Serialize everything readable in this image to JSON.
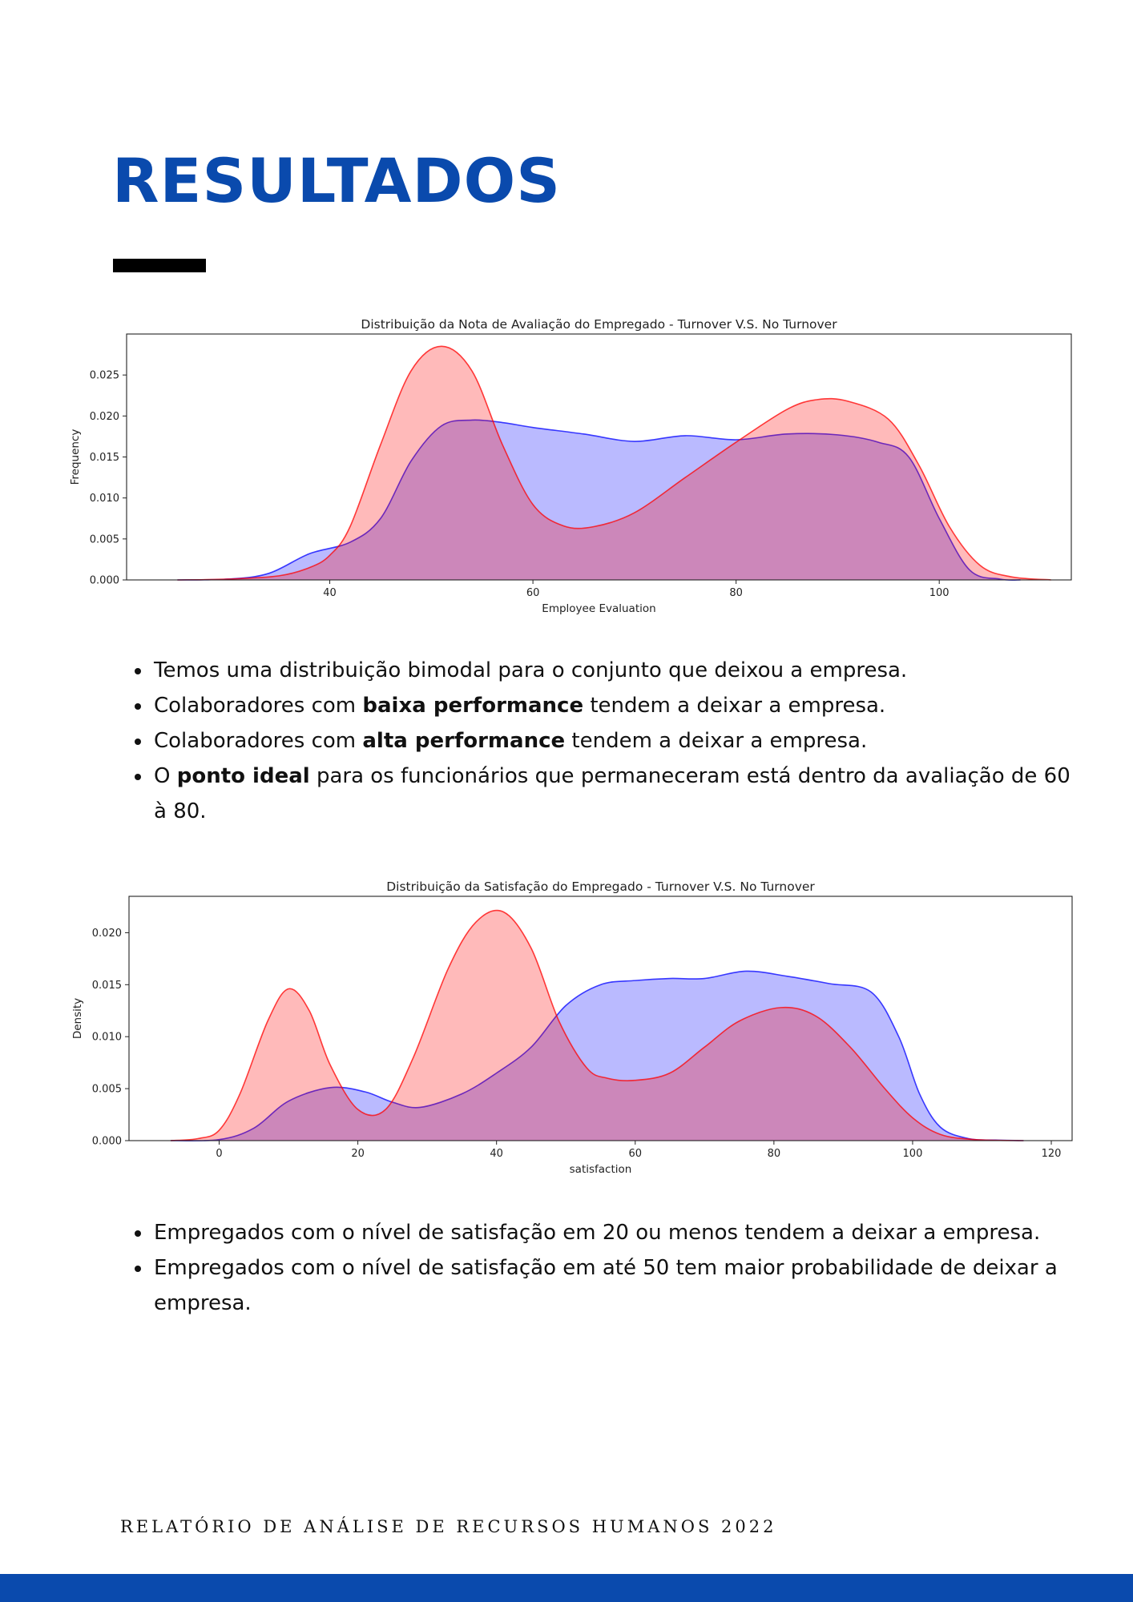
{
  "page": {
    "title": "RESULTADOS",
    "footer": "RELATÓRIO DE ANÁLISE DE RECURSOS HUMANOS 2022",
    "colors": {
      "brand": "#0a4aad",
      "turnover": "#ff0000",
      "no_turnover": "#0000ff"
    }
  },
  "bullets1": [
    {
      "pre": "Temos uma distribuição bimodal para o conjunto que deixou a empresa.",
      "bold": "",
      "post": ""
    },
    {
      "pre": "Colaboradores com ",
      "bold": "baixa performance",
      "post": " tendem a deixar a empresa."
    },
    {
      "pre": "Colaboradores com ",
      "bold": "alta performance",
      "post": " tendem a deixar a empresa."
    },
    {
      "pre": "O ",
      "bold": "ponto ideal",
      "post": " para os funcionários que permaneceram está dentro da avaliação de 60 à 80."
    }
  ],
  "bullets2": [
    {
      "pre": "Empregados com o nível de satisfação em 20 ou menos tendem a deixar a empresa.",
      "bold": "",
      "post": ""
    },
    {
      "pre": "Empregados com o nível de satisfação em até 50 tem maior probabilidade de deixar a empresa.",
      "bold": "",
      "post": ""
    }
  ],
  "chart_data": [
    {
      "type": "area",
      "title": "Distribuição da Nota de Avaliação do Empregado - Turnover V.S. No Turnover",
      "xlabel": "Employee Evaluation",
      "ylabel": "Frequency",
      "xlim": [
        20,
        113
      ],
      "ylim": [
        0,
        0.03
      ],
      "xticks": [
        40,
        60,
        80,
        100
      ],
      "yticks": [
        0.0,
        0.005,
        0.01,
        0.015,
        0.02,
        0.025
      ],
      "ytick_labels": [
        "0.000",
        "0.005",
        "0.010",
        "0.015",
        "0.020",
        "0.025"
      ],
      "grid": false,
      "series": [
        {
          "color": "#0000ff",
          "x": [
            25,
            30,
            34,
            38,
            42,
            45,
            48,
            51,
            54,
            57,
            60,
            65,
            70,
            75,
            80,
            85,
            90,
            94,
            97,
            100,
            103,
            106,
            108
          ],
          "y": [
            0,
            0.0001,
            0.0008,
            0.0032,
            0.0046,
            0.0075,
            0.0145,
            0.0188,
            0.0195,
            0.0192,
            0.0186,
            0.0178,
            0.0169,
            0.0176,
            0.0171,
            0.0178,
            0.0177,
            0.0168,
            0.015,
            0.0075,
            0.0012,
            0.0001,
            0
          ]
        },
        {
          "color": "#ff0000",
          "x": [
            25,
            30,
            35,
            38,
            40,
            42,
            45,
            48,
            51,
            54,
            57,
            60,
            63,
            66,
            70,
            75,
            80,
            85,
            88,
            91,
            95,
            98,
            101,
            104,
            107,
            111
          ],
          "y": [
            0,
            0.0001,
            0.0005,
            0.0015,
            0.003,
            0.0065,
            0.0165,
            0.0255,
            0.0285,
            0.0255,
            0.0165,
            0.0092,
            0.0066,
            0.0065,
            0.0082,
            0.0125,
            0.0168,
            0.0208,
            0.022,
            0.0218,
            0.0196,
            0.014,
            0.0065,
            0.0018,
            0.0004,
            0
          ]
        }
      ]
    },
    {
      "type": "area",
      "title": "Distribuição da Satisfação do Empregado - Turnover V.S. No Turnover",
      "xlabel": "satisfaction",
      "ylabel": "Density",
      "xlim": [
        -13,
        123
      ],
      "ylim": [
        0,
        0.0235
      ],
      "xticks": [
        0,
        20,
        40,
        60,
        80,
        100,
        120
      ],
      "yticks": [
        0.0,
        0.005,
        0.01,
        0.015,
        0.02
      ],
      "ytick_labels": [
        "0.000",
        "0.005",
        "0.010",
        "0.015",
        "0.020"
      ],
      "grid": false,
      "series": [
        {
          "color": "#0000ff",
          "x": [
            -7,
            0,
            5,
            10,
            16,
            21,
            25,
            29,
            35,
            40,
            45,
            50,
            55,
            60,
            65,
            70,
            76,
            82,
            88,
            94,
            98,
            101,
            104,
            108,
            112,
            116
          ],
          "y": [
            0,
            0.0001,
            0.0012,
            0.0038,
            0.0051,
            0.0047,
            0.0037,
            0.0032,
            0.0045,
            0.0065,
            0.009,
            0.013,
            0.015,
            0.0154,
            0.0156,
            0.0156,
            0.0163,
            0.0158,
            0.0151,
            0.0143,
            0.01,
            0.0045,
            0.0013,
            0.0002,
            5e-05,
            0
          ]
        },
        {
          "color": "#ff0000",
          "x": [
            -7,
            -3,
            0,
            3,
            7,
            10,
            13,
            16,
            20,
            24,
            28,
            33,
            37,
            41,
            45,
            49,
            53,
            56,
            60,
            65,
            70,
            75,
            81,
            86,
            91,
            96,
            100,
            104,
            109,
            116
          ],
          "y": [
            0,
            0.0002,
            0.001,
            0.0045,
            0.0115,
            0.0146,
            0.0125,
            0.0073,
            0.003,
            0.003,
            0.008,
            0.0165,
            0.021,
            0.022,
            0.0185,
            0.0115,
            0.007,
            0.006,
            0.0058,
            0.0065,
            0.009,
            0.0115,
            0.0128,
            0.012,
            0.009,
            0.005,
            0.0022,
            0.0006,
            0.0001,
            0
          ]
        }
      ]
    }
  ]
}
